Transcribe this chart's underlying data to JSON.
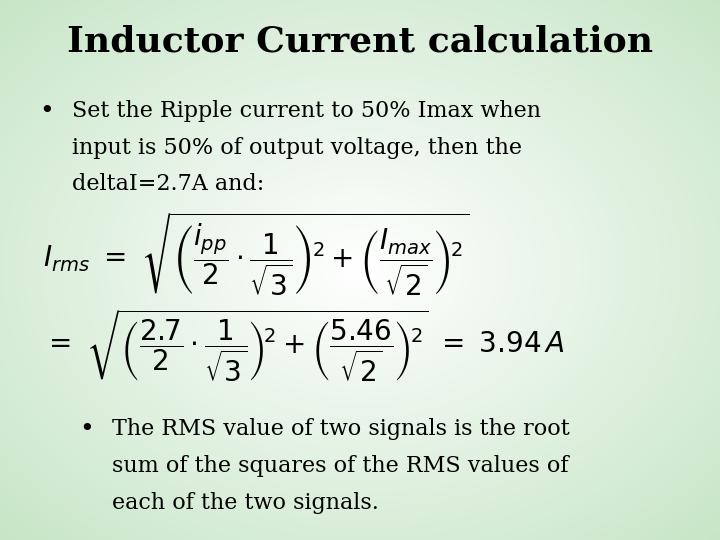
{
  "title": "Inductor Current calculation",
  "title_fontsize": 26,
  "title_fontweight": "bold",
  "bullet1_line1": "Set the Ripple current to 50% Imax when",
  "bullet1_line2": "input is 50% of output voltage, then the",
  "bullet1_line3": "deltaI=2.7A and:",
  "bullet2_line1": "The RMS value of two signals is the root",
  "bullet2_line2": "sum of the squares of the RMS values of",
  "bullet2_line3": "each of the two signals.",
  "text_color": "#000000",
  "body_fontsize": 16,
  "formula_fontsize": 20
}
